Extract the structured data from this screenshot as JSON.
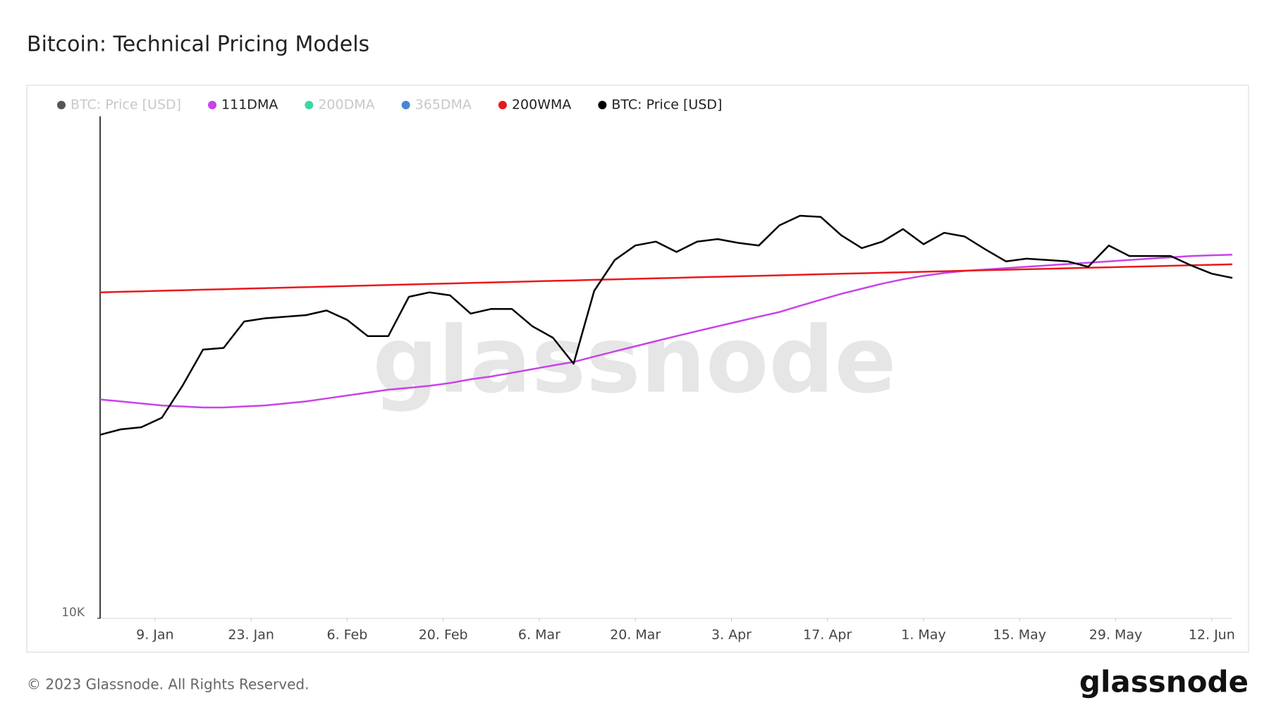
{
  "chart_data": {
    "type": "line",
    "title": "Bitcoin: Technical Pricing Models",
    "footer": "© 2023 Glassnode. All Rights Reserved.",
    "logo": "glassnode",
    "watermark": "glassnode",
    "log_scale": true,
    "x": [
      1,
      4,
      7,
      10,
      13,
      16,
      19,
      22,
      25,
      28,
      31,
      34,
      37,
      40,
      43,
      46,
      49,
      52,
      55,
      58,
      61,
      64,
      67,
      70,
      73,
      76,
      79,
      82,
      85,
      88,
      91,
      94,
      97,
      100,
      103,
      106,
      109,
      112,
      115,
      118,
      121,
      124,
      127,
      130,
      133,
      136,
      139,
      142,
      145,
      148,
      151,
      154,
      157,
      160,
      163,
      166
    ],
    "xlim": [
      1,
      166
    ],
    "xticks": [
      {
        "value": 9,
        "label": "9. Jan"
      },
      {
        "value": 23,
        "label": "23. Jan"
      },
      {
        "value": 37,
        "label": "6. Feb"
      },
      {
        "value": 51,
        "label": "20. Feb"
      },
      {
        "value": 65,
        "label": "6. Mar"
      },
      {
        "value": 79,
        "label": "20. Mar"
      },
      {
        "value": 93,
        "label": "3. Apr"
      },
      {
        "value": 107,
        "label": "17. Apr"
      },
      {
        "value": 121,
        "label": "1. May"
      },
      {
        "value": 135,
        "label": "15. May"
      },
      {
        "value": 149,
        "label": "29. May"
      },
      {
        "value": 163,
        "label": "12. Jun"
      }
    ],
    "ylim": [
      10000,
      40000
    ],
    "yticks": [
      {
        "value": 10000,
        "label": "10K"
      }
    ],
    "series": [
      {
        "name": "BTC: Price [USD]",
        "color": "#555555",
        "visible": false
      },
      {
        "name": "111DMA",
        "color": "#c843e8",
        "visible": true,
        "values": [
          18300,
          18200,
          18100,
          18000,
          17950,
          17900,
          17900,
          17950,
          18000,
          18100,
          18200,
          18350,
          18500,
          18650,
          18800,
          18900,
          19000,
          19150,
          19350,
          19500,
          19700,
          19900,
          20100,
          20300,
          20600,
          20900,
          21200,
          21500,
          21800,
          22100,
          22400,
          22700,
          23000,
          23300,
          23700,
          24100,
          24500,
          24850,
          25200,
          25500,
          25750,
          25950,
          26100,
          26200,
          26300,
          26400,
          26500,
          26600,
          26700,
          26800,
          26900,
          27000,
          27100,
          27200,
          27250,
          27300
        ]
      },
      {
        "name": "200DMA",
        "color": "#3ed6a8",
        "visible": false
      },
      {
        "name": "365DMA",
        "color": "#4a86d6",
        "visible": false
      },
      {
        "name": "200WMA",
        "color": "#e8191e",
        "visible": true,
        "values": [
          24600,
          24636,
          24672,
          24708,
          24744,
          24780,
          24816,
          24852,
          24888,
          24924,
          24960,
          24996,
          25032,
          25068,
          25104,
          25140,
          25176,
          25212,
          25248,
          25284,
          25320,
          25356,
          25392,
          25428,
          25464,
          25500,
          25536,
          25572,
          25608,
          25644,
          25680,
          25716,
          25752,
          25788,
          25824,
          25860,
          25896,
          25932,
          25968,
          26004,
          26040,
          26076,
          26112,
          26148,
          26184,
          26220,
          26256,
          26292,
          26328,
          26364,
          26400,
          26436,
          26472,
          26508,
          26544,
          26580
        ]
      },
      {
        "name": "BTC: Price [USD]",
        "color": "#000000",
        "visible": true,
        "values": [
          16600,
          16850,
          16950,
          17400,
          19000,
          21000,
          21100,
          22700,
          22900,
          23000,
          23100,
          23400,
          22800,
          21800,
          21800,
          24300,
          24600,
          24400,
          23200,
          23500,
          23500,
          22400,
          21700,
          20200,
          24700,
          26900,
          28000,
          28300,
          27500,
          28300,
          28500,
          28200,
          28000,
          29600,
          30400,
          30300,
          28800,
          27800,
          28300,
          29300,
          28100,
          29000,
          28700,
          27700,
          26800,
          27000,
          26900,
          26800,
          26400,
          28000,
          27200,
          27200,
          27200,
          26500,
          25900,
          25600
        ]
      }
    ]
  }
}
